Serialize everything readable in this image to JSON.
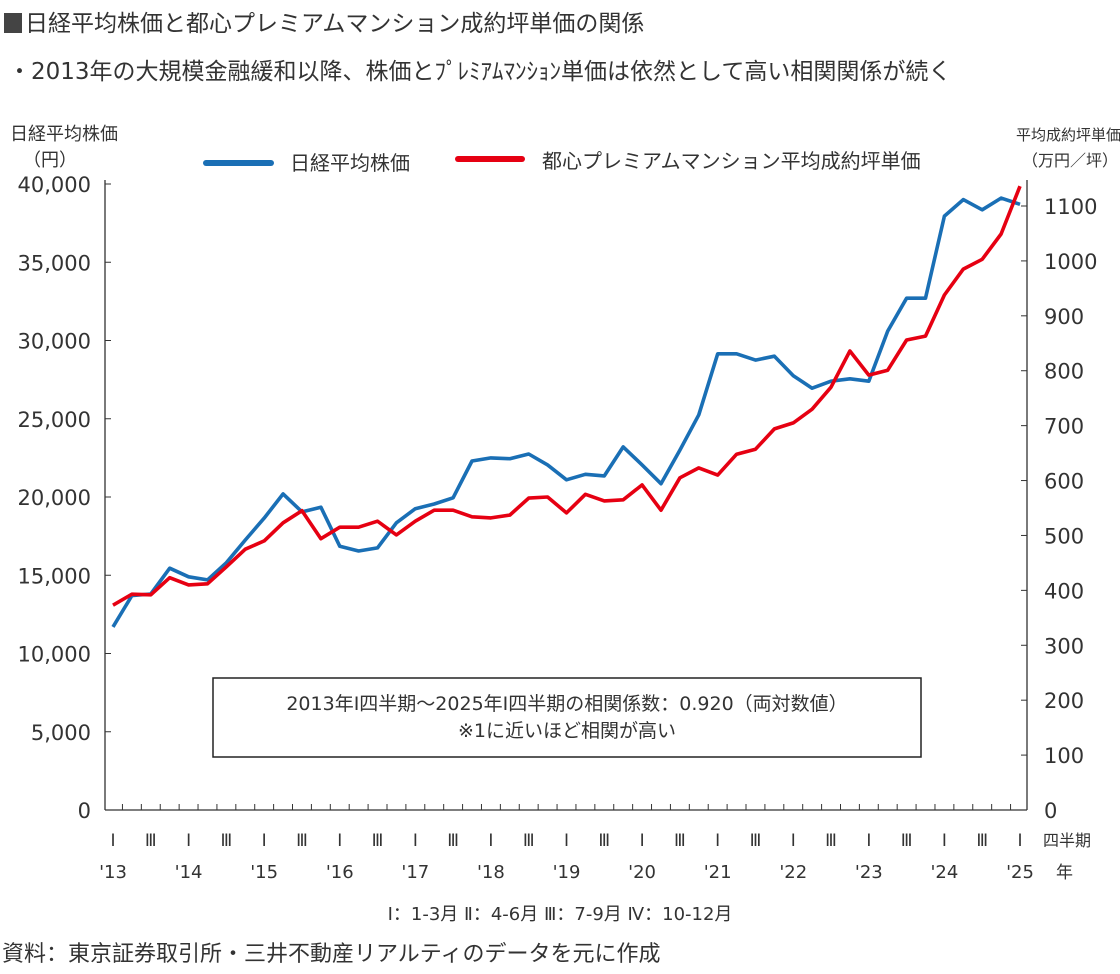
{
  "title": "日経平均株価と都心プレミアムマンション成約坪単価の関係",
  "subtitle": "・2013年の大規模金融緩和以降、株価とﾌﾟﾚﾐｱﾑﾏﾝｼｮﾝ単価は依然として高い相関関係が続く",
  "source": "資料：東京証券取引所・三井不動産リアルティのデータを元に作成",
  "chart_data": {
    "type": "line",
    "left_axis_label": [
      "日経平均株価",
      "（円）"
    ],
    "right_axis_label": [
      "平均成約坪単価",
      "（万円／坪）"
    ],
    "left_ylim": [
      0,
      40000
    ],
    "left_ticks": [
      "0",
      "5,000",
      "10,000",
      "15,000",
      "20,000",
      "25,000",
      "30,000",
      "35,000",
      "40,000"
    ],
    "right_ylim": [
      0,
      1100
    ],
    "right_ticks": [
      "0",
      "100",
      "200",
      "300",
      "400",
      "500",
      "600",
      "700",
      "800",
      "900",
      "1000",
      "1100"
    ],
    "x_range": [
      "2013 Q1",
      "2025 Q1"
    ],
    "quarter_tick_labels": [
      "Ⅰ",
      "Ⅲ",
      "Ⅰ",
      "Ⅲ",
      "Ⅰ",
      "Ⅲ",
      "Ⅰ",
      "Ⅲ",
      "Ⅰ",
      "Ⅲ",
      "Ⅰ",
      "Ⅲ",
      "Ⅰ",
      "Ⅲ",
      "Ⅰ",
      "Ⅲ",
      "Ⅰ",
      "Ⅲ",
      "Ⅰ",
      "Ⅲ",
      "Ⅰ",
      "Ⅲ",
      "Ⅰ",
      "Ⅲ",
      "Ⅰ"
    ],
    "year_labels": [
      "'13",
      "'14",
      "'15",
      "'16",
      "'17",
      "'18",
      "'19",
      "'20",
      "'21",
      "'22",
      "'23",
      "'24",
      "'25"
    ],
    "x_unit_labels": {
      "quarter": "四半期",
      "year": "年"
    },
    "quarter_legend": "Ⅰ：1-3月 Ⅱ：4-6月 Ⅲ：7-9月 Ⅳ：10-12月",
    "grid": false,
    "legend_position": "top",
    "series": [
      {
        "name": "日経平均株価",
        "axis": "left",
        "color": "#1a6fb5",
        "values": [
          11700,
          13700,
          13800,
          15450,
          14900,
          14700,
          15800,
          17250,
          18650,
          20200,
          19050,
          19350,
          16850,
          16550,
          16750,
          18350,
          19250,
          19550,
          19950,
          22300,
          22500,
          22450,
          22750,
          22050,
          21100,
          21450,
          21350,
          23200,
          22050,
          20850,
          23000,
          25250,
          29150,
          29150,
          28750,
          29000,
          27750,
          26950,
          27400,
          27550,
          27400,
          30600,
          32700,
          32700,
          37950,
          39000,
          38350,
          39100,
          38700
        ]
      },
      {
        "name": "都心プレミアムマンション平均成約坪単価",
        "axis": "right",
        "color": "#e60012",
        "values": [
          373,
          393,
          392,
          423,
          410,
          412,
          443,
          475,
          490,
          523,
          545,
          494,
          515,
          515,
          526,
          501,
          526,
          546,
          546,
          534,
          532,
          537,
          568,
          570,
          541,
          575,
          563,
          565,
          592,
          546,
          605,
          623,
          610,
          648,
          657,
          694,
          705,
          730,
          770,
          836,
          792,
          801,
          856,
          863,
          938,
          985,
          1003,
          1049,
          1136
        ]
      }
    ],
    "annotation": [
      "2013年Ⅰ四半期～2025年Ⅰ四半期の相関係数：0.920（両対数値）",
      "※1に近いほど相関が高い"
    ]
  }
}
